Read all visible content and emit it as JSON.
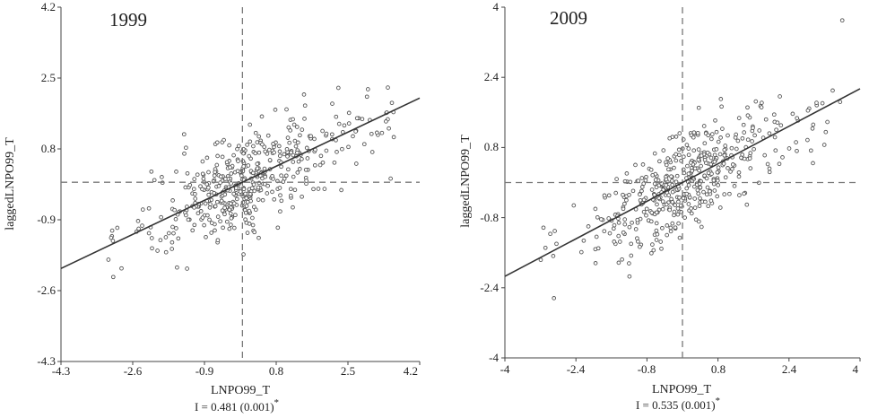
{
  "colors": {
    "background": "#ffffff",
    "axis": "#444444",
    "point_stroke": "#555555",
    "fit_line": "#333333",
    "mean_line": "#777777"
  },
  "chart_data": [
    {
      "type": "scatter",
      "title": "1999",
      "xlabel": "LNPO99_T",
      "ylabel": "laggedLNPO99_T",
      "xlim": [
        -4.3,
        4.2
      ],
      "ylim": [
        -4.3,
        4.2
      ],
      "xticks": [
        -4.3,
        -2.6,
        -0.9,
        0.8,
        2.5,
        4.2
      ],
      "yticks": [
        -4.3,
        -2.6,
        -0.9,
        0.8,
        2.5,
        4.2
      ],
      "xtick_labels": [
        "-4.3",
        "-2.6",
        "-0.9",
        "0.8",
        "2.5",
        "4.2"
      ],
      "ytick_labels": [
        "-4.3",
        "-2.6",
        "-0.9",
        "0.8",
        "2.5",
        "4.2"
      ],
      "mean_x": 0,
      "mean_y": 0,
      "slope": 0.481,
      "stat": {
        "prefix": "I = ",
        "value": "0.481",
        "pvalue": "(0.001)",
        "marker": "*"
      },
      "n_points": 480,
      "seed": 17
    },
    {
      "type": "scatter",
      "title": "2009",
      "xlabel": "LNPO99_T",
      "ylabel": "laggedLNPO99_T",
      "xlim": [
        -4,
        4
      ],
      "ylim": [
        -4,
        4
      ],
      "xticks": [
        -4,
        -2.4,
        -0.8,
        0.8,
        2.4,
        4
      ],
      "yticks": [
        -4,
        -2.4,
        -0.8,
        0.8,
        2.4,
        4
      ],
      "xtick_labels": [
        "-4",
        "-2.4",
        "-0.8",
        "0.8",
        "2.4",
        "4"
      ],
      "ytick_labels": [
        "-4",
        "-2.4",
        "-0.8",
        "0.8",
        "2.4",
        "4"
      ],
      "mean_x": 0,
      "mean_y": 0,
      "slope": 0.535,
      "stat": {
        "prefix": "I = ",
        "value": "0.535",
        "pvalue": "(0.001)",
        "marker": "*"
      },
      "n_points": 480,
      "seed": 29
    }
  ]
}
